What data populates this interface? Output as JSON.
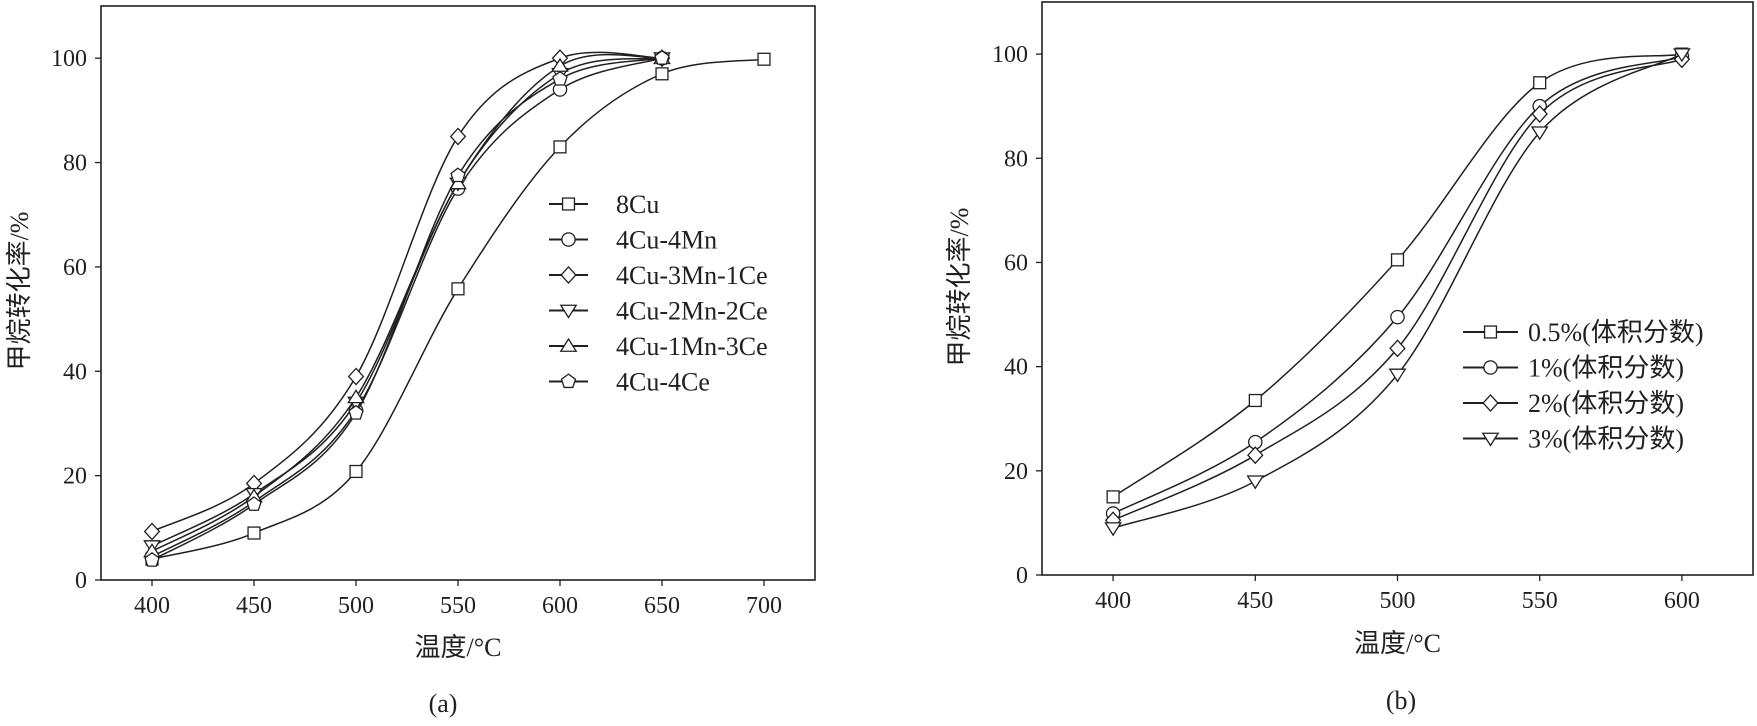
{
  "chart_data": [
    {
      "type": "line",
      "caption": "(a)",
      "xlabel": "温度/°C",
      "ylabel": "甲烷转化率/%",
      "xlim": [
        375,
        725
      ],
      "ylim": [
        0,
        110
      ],
      "xticks": [
        400,
        450,
        500,
        550,
        600,
        650,
        700
      ],
      "yticks": [
        0,
        20,
        40,
        60,
        80,
        100
      ],
      "grid": false,
      "legend_position": "right-middle",
      "series": [
        {
          "name": "8Cu",
          "marker": "square",
          "x": [
            400,
            450,
            500,
            550,
            600,
            650,
            700
          ],
          "y": [
            4,
            9,
            20.8,
            55.8,
            83,
            97,
            99.8
          ]
        },
        {
          "name": "4Cu-4Mn",
          "marker": "circle",
          "x": [
            400,
            450,
            500,
            550,
            600,
            650
          ],
          "y": [
            4.5,
            15,
            32.5,
            75,
            94,
            100
          ]
        },
        {
          "name": "4Cu-3Mn-1Ce",
          "marker": "diamond",
          "x": [
            400,
            450,
            500,
            550,
            600,
            650
          ],
          "y": [
            9.3,
            18.5,
            39,
            85,
            100,
            100
          ]
        },
        {
          "name": "4Cu-2Mn-2Ce",
          "marker": "triangle-down",
          "x": [
            400,
            450,
            500,
            550,
            600,
            650
          ],
          "y": [
            6.5,
            16.5,
            34,
            76,
            97,
            100
          ]
        },
        {
          "name": "4Cu-1Mn-3Ce",
          "marker": "triangle-up",
          "x": [
            400,
            450,
            500,
            550,
            600,
            650
          ],
          "y": [
            5.5,
            16,
            35,
            76,
            98.5,
            100
          ]
        },
        {
          "name": "4Cu-4Ce",
          "marker": "pentagon",
          "x": [
            400,
            450,
            500,
            550,
            600,
            650
          ],
          "y": [
            3.8,
            14.5,
            32,
            77.5,
            96,
            100
          ]
        }
      ]
    },
    {
      "type": "line",
      "caption": "(b)",
      "xlabel": "温度/°C",
      "ylabel": "甲烷转化率/%",
      "xlim": [
        375,
        625
      ],
      "ylim": [
        0,
        110
      ],
      "xticks": [
        400,
        450,
        500,
        550,
        600
      ],
      "yticks": [
        0,
        20,
        40,
        60,
        80,
        100
      ],
      "grid": false,
      "legend_position": "right-middle",
      "series": [
        {
          "name": "0.5%(体积分数)",
          "marker": "square",
          "x": [
            400,
            450,
            500,
            550,
            600
          ],
          "y": [
            15,
            33.5,
            60.5,
            94.5,
            100
          ]
        },
        {
          "name": "1%(体积分数)",
          "marker": "circle",
          "x": [
            400,
            450,
            500,
            550,
            600
          ],
          "y": [
            11.8,
            25.5,
            49.5,
            90,
            99.5
          ]
        },
        {
          "name": "2%(体积分数)",
          "marker": "diamond",
          "x": [
            400,
            450,
            500,
            550,
            600
          ],
          "y": [
            10.5,
            23,
            43.5,
            88.5,
            99
          ]
        },
        {
          "name": "3%(体积分数)",
          "marker": "triangle-down",
          "x": [
            400,
            450,
            500,
            550,
            600
          ],
          "y": [
            9,
            18,
            38.5,
            85,
            100
          ]
        }
      ]
    }
  ]
}
